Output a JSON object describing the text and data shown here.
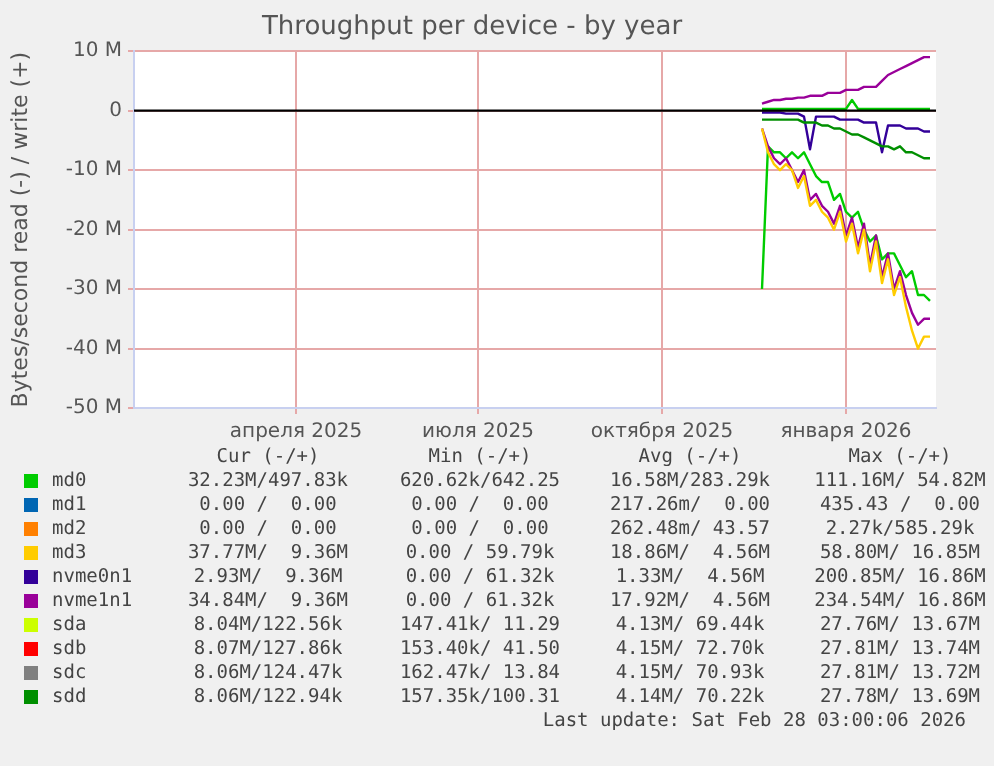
{
  "chart_data": {
    "type": "line",
    "title": "Throughput per device - by year",
    "ylabel": "Bytes/second read (-) / write (+)",
    "x": [
      "2025-11-20",
      "2025-11-23",
      "2025-11-26",
      "2025-11-29",
      "2025-12-02",
      "2025-12-05",
      "2025-12-08",
      "2025-12-11",
      "2025-12-14",
      "2025-12-17",
      "2025-12-20",
      "2025-12-23",
      "2025-12-26",
      "2025-12-29",
      "2026-01-01",
      "2026-01-04",
      "2026-01-07",
      "2026-01-10",
      "2026-01-13",
      "2026-01-16",
      "2026-01-19",
      "2026-01-22",
      "2026-01-25",
      "2026-01-28",
      "2026-01-31",
      "2026-02-03",
      "2026-02-06",
      "2026-02-09",
      "2026-02-12"
    ],
    "xlim": [
      "2025-01-10",
      "2026-02-15"
    ],
    "xticks": [
      {
        "value": "2025-04-01",
        "label": "апреля 2025"
      },
      {
        "value": "2025-07-01",
        "label": "июля 2025"
      },
      {
        "value": "2025-10-01",
        "label": "октября 2025"
      },
      {
        "value": "2026-01-01",
        "label": "января 2026"
      }
    ],
    "ylim": [
      -50,
      10
    ],
    "yticks": [
      {
        "value": -50,
        "label": "-50 M"
      },
      {
        "value": -40,
        "label": "-40 M"
      },
      {
        "value": -30,
        "label": "-30 M"
      },
      {
        "value": -20,
        "label": "-20 M"
      },
      {
        "value": -10,
        "label": "-10 M"
      },
      0,
      {
        "value": 10,
        "label": "10 M"
      }
    ],
    "grid": true,
    "legend": "bottom",
    "ref_lines": [
      {
        "axis": "y",
        "value": 0,
        "color": "#000000"
      }
    ],
    "series": [
      {
        "name": "md0",
        "color": "#00cc00",
        "values": [
          0.3,
          0.3,
          0.3,
          0.3,
          0.3,
          0.3,
          0.3,
          0.3,
          0.3,
          0.3,
          0.3,
          0.3,
          0.3,
          0.3,
          0.3,
          1.8,
          0.3,
          0.3,
          0.3,
          0.3,
          0.3,
          0.3,
          0.3,
          0.3,
          0.3,
          0.3,
          0.3,
          0.3,
          0.3
        ]
      },
      {
        "name": "md1",
        "color": "#0066b3",
        "values": [
          null,
          null,
          null,
          null,
          null,
          null,
          null,
          null,
          null,
          null,
          null,
          null,
          null,
          null,
          null,
          null,
          null,
          null,
          null,
          null,
          null,
          null,
          null,
          null,
          null,
          null,
          null,
          null,
          null
        ]
      },
      {
        "name": "md2",
        "color": "#ff8000",
        "values": [
          null,
          null,
          null,
          null,
          null,
          null,
          null,
          null,
          null,
          null,
          null,
          null,
          null,
          null,
          null,
          null,
          null,
          null,
          null,
          null,
          null,
          null,
          null,
          null,
          null,
          null,
          null,
          null,
          null
        ]
      },
      {
        "name": "md3",
        "color": "#ffcc00",
        "values": [
          null,
          null,
          null,
          null,
          null,
          null,
          null,
          null,
          null,
          null,
          null,
          null,
          null,
          null,
          null,
          null,
          null,
          null,
          null,
          null,
          null,
          null,
          null,
          null,
          null,
          null,
          null,
          null,
          null
        ]
      },
      {
        "name": "nvme0n1",
        "color": "#330099",
        "values": [
          null,
          null,
          null,
          null,
          null,
          null,
          null,
          null,
          null,
          null,
          null,
          null,
          null,
          null,
          null,
          null,
          null,
          null,
          null,
          null,
          null,
          null,
          null,
          null,
          null,
          null,
          null,
          null,
          null
        ]
      },
      {
        "name": "nvme1n1",
        "color": "#990099",
        "values": [
          1.2,
          1.5,
          1.8,
          1.8,
          2,
          2,
          2.2,
          2.2,
          2.5,
          2.5,
          2.5,
          3,
          3,
          3,
          3.5,
          3.5,
          3.5,
          4,
          4,
          4,
          5,
          6,
          6.5,
          7,
          7.5,
          8,
          8.5,
          9,
          9
        ]
      },
      {
        "name": "sda",
        "color": "#ccff00",
        "values": [
          null,
          null,
          null,
          null,
          null,
          null,
          null,
          null,
          null,
          null,
          null,
          null,
          null,
          null,
          null,
          null,
          null,
          null,
          null,
          null,
          null,
          null,
          null,
          null,
          null,
          null,
          null,
          null,
          null
        ]
      },
      {
        "name": "sdb",
        "color": "#ff0000",
        "values": [
          null,
          null,
          null,
          null,
          null,
          null,
          null,
          null,
          null,
          null,
          null,
          null,
          null,
          null,
          null,
          null,
          null,
          null,
          null,
          null,
          null,
          null,
          null,
          null,
          null,
          null,
          null,
          null,
          null
        ]
      },
      {
        "name": "sdc",
        "color": "#808080",
        "values": [
          null,
          null,
          null,
          null,
          null,
          null,
          null,
          null,
          null,
          null,
          null,
          null,
          null,
          null,
          null,
          null,
          null,
          null,
          null,
          null,
          null,
          null,
          null,
          null,
          null,
          null,
          null,
          null,
          null
        ]
      },
      {
        "name": "sdd",
        "color": "#008f00",
        "values": [
          null,
          null,
          null,
          null,
          null,
          null,
          null,
          null,
          null,
          null,
          null,
          null,
          null,
          null,
          null,
          null,
          null,
          null,
          null,
          null,
          null,
          null,
          null,
          null,
          null,
          null,
          null,
          null,
          null
        ]
      },
      {
        "color": "#008f00",
        "values": [
          -1.5,
          -1.5,
          -1.5,
          -1.5,
          -1.5,
          -1.5,
          -1.5,
          -2,
          -2,
          -2,
          -2.5,
          -2.5,
          -3,
          -3,
          -3.5,
          -4,
          -4,
          -4.5,
          -5,
          -5.5,
          -6,
          -6,
          -6.5,
          -6,
          -7,
          -7,
          -7.5,
          -8,
          -8
        ]
      },
      {
        "color": "#330099",
        "values": [
          -0.3,
          -0.3,
          -0.3,
          -0.3,
          -0.5,
          -0.5,
          -0.5,
          -1,
          -6.5,
          -1,
          -1,
          -1,
          -1,
          -1.5,
          -1.5,
          -1.5,
          -1.5,
          -2,
          -2,
          -2,
          -7,
          -2.5,
          -2.5,
          -2.5,
          -3,
          -3,
          -3,
          -3.5,
          -3.5
        ]
      },
      {
        "color": "#ffcc00",
        "values": [
          -3,
          -7,
          -9,
          -10,
          -9,
          -10,
          -13,
          -11,
          -16,
          -15,
          -17,
          -18,
          -20,
          -17,
          -22,
          -19,
          -24,
          -20,
          -27,
          -22,
          -29,
          -25,
          -31,
          -28,
          -33,
          -37,
          -40,
          -38,
          -38
        ]
      },
      {
        "color": "#990099",
        "values": [
          -3,
          -6,
          -8,
          -9,
          -8,
          -10,
          -12,
          -10,
          -15,
          -14,
          -16,
          -17,
          -19,
          -16,
          -21,
          -18,
          -23,
          -19,
          -26,
          -21,
          -28,
          -24,
          -30,
          -27,
          -31,
          -34,
          -36,
          -35,
          -35
        ]
      },
      {
        "color": "#00cc00",
        "values": [
          -30,
          -6,
          -7,
          -7,
          -8,
          -7,
          -8,
          -7,
          -9,
          -11,
          -12,
          -12,
          -15,
          -14,
          -17,
          -18,
          -17,
          -20,
          -22,
          -21,
          -25,
          -24,
          -24,
          -26,
          -28,
          -27,
          -31,
          -31,
          -32
        ]
      }
    ],
    "annotations": [
      "Cur (-/+)",
      "Min (-/+)",
      "Avg (-/+)",
      "Max (-/+)",
      "32.23M/497.83k",
      "620.62k/642.25",
      "16.58M/283.29k",
      "111.16M/ 54.82M",
      "0.00 /  0.00",
      "0.00 /  0.00",
      "217.26m/  0.00",
      "435.43 /  0.00",
      "0.00 /  0.00",
      "0.00 /  0.00",
      "262.48m/ 43.57",
      "2.27k/585.29k",
      "37.77M/  9.36M",
      "0.00 / 59.79k",
      "18.86M/  4.56M",
      "58.80M/ 16.85M",
      "2.93M/  9.36M",
      "0.00 / 61.32k",
      "1.33M/  4.56M",
      "200.85M/ 16.86M",
      "34.84M/  9.36M",
      "0.00 / 61.32k",
      "17.92M/  4.56M",
      "234.54M/ 16.86M",
      "8.04M/122.56k",
      "147.41k/ 11.29",
      "4.13M/ 69.44k",
      "27.76M/ 13.67M",
      "8.07M/127.86k",
      "153.40k/ 41.50",
      "4.15M/ 72.70k",
      "27.81M/ 13.74M",
      "8.06M/124.47k",
      "162.47k/ 13.84",
      "4.15M/ 70.93k",
      "27.81M/ 13.72M",
      "8.06M/122.94k",
      "157.35k/100.31",
      "4.14M/ 70.22k",
      "27.78M/ 13.69M",
      "Last update: Sat Feb 28 03:00:06 2026"
    ]
  }
}
